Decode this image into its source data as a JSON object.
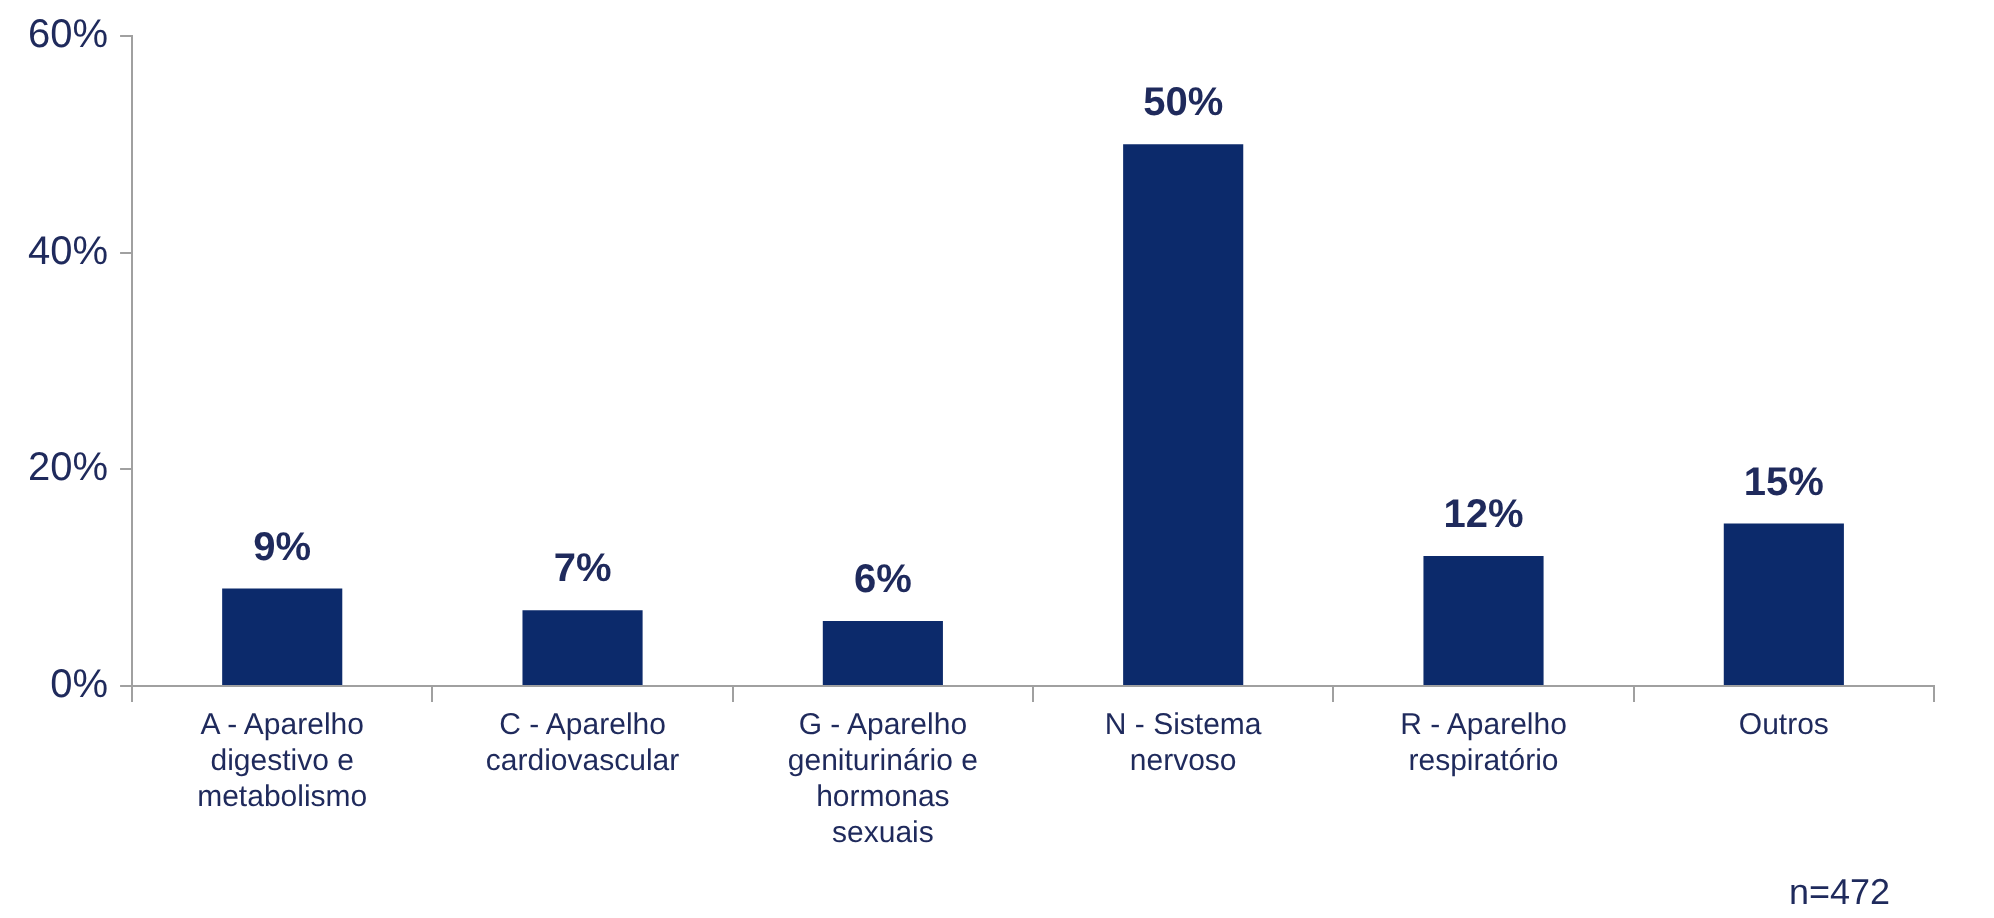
{
  "chart_data": {
    "type": "bar",
    "categories": [
      "A - Aparelho digestivo e metabolismo",
      "C - Aparelho cardiovascular",
      "G - Aparelho geniturinário e hormonas sexuais",
      "N - Sistema nervoso",
      "R - Aparelho respiratório",
      "Outros"
    ],
    "values": [
      9,
      7,
      6,
      50,
      12,
      15
    ],
    "value_labels": [
      "9%",
      "7%",
      "6%",
      "50%",
      "12%",
      "15%"
    ],
    "color": "#0c2a6b",
    "ylim": [
      0,
      60
    ],
    "yticks": [
      {
        "value": 0,
        "label": "0%"
      },
      {
        "value": 20,
        "label": "20%"
      },
      {
        "value": 40,
        "label": "40%"
      },
      {
        "value": 60,
        "label": "60%"
      }
    ],
    "grid": false,
    "legend": false,
    "annotations": [
      "n=472"
    ]
  }
}
